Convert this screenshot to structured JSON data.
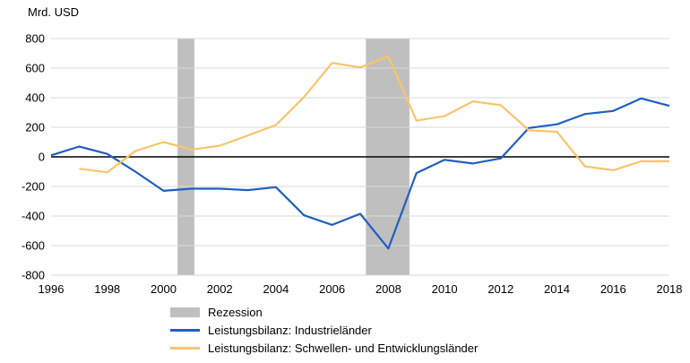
{
  "chart_data": {
    "type": "line",
    "title": "",
    "ylabel": "Mrd. USD",
    "xlabel": "",
    "xlim": [
      1996,
      2018
    ],
    "ylim": [
      -800,
      800
    ],
    "x_ticks": [
      1996,
      1998,
      2000,
      2002,
      2004,
      2006,
      2008,
      2010,
      2012,
      2014,
      2016,
      2018
    ],
    "y_ticks": [
      -800,
      -600,
      -400,
      -200,
      0,
      200,
      400,
      600,
      800
    ],
    "x": [
      1996,
      1997,
      1998,
      1999,
      2000,
      2001,
      2002,
      2003,
      2004,
      2005,
      2006,
      2007,
      2008,
      2009,
      2010,
      2011,
      2012,
      2013,
      2014,
      2015,
      2016,
      2017,
      2018
    ],
    "series": [
      {
        "name": "Leistungsbilanz: Industrieländer",
        "color": "#1f5fbf",
        "values": [
          10,
          70,
          20,
          -100,
          -230,
          -215,
          -215,
          -225,
          -205,
          -395,
          -460,
          -385,
          -620,
          -110,
          -20,
          -45,
          -10,
          195,
          220,
          290,
          310,
          395,
          345
        ]
      },
      {
        "name": "Leistungsbilanz: Schwellen- und Entwicklungsländer",
        "color": "#f9c46b",
        "values": [
          null,
          -80,
          -105,
          40,
          100,
          50,
          75,
          145,
          215,
          405,
          635,
          605,
          680,
          245,
          275,
          375,
          350,
          180,
          170,
          -65,
          -90,
          -30,
          -30
        ]
      }
    ],
    "recession_bands": {
      "label": "Rezession",
      "color": "#bfbfbf",
      "ranges": [
        [
          2000.5,
          2001.1
        ],
        [
          2007.2,
          2008.75
        ]
      ]
    },
    "grid_on": true,
    "grid_color": "#d9d9d9",
    "zero_line_color": "#000000",
    "legend_position": "bottom-left"
  }
}
